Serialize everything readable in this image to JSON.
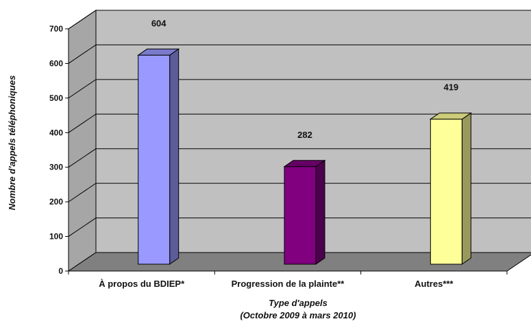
{
  "chart_data": {
    "type": "bar",
    "style": "3d-column",
    "title": "",
    "xlabel": "Type d'appels",
    "xlabel_sub": "(Octobre 2009 à mars 2010)",
    "ylabel": "Nombre d'appels téléphoniques",
    "ylim": [
      0,
      700
    ],
    "yticks": [
      0,
      100,
      200,
      300,
      400,
      500,
      600,
      700
    ],
    "grid": true,
    "legend": "none",
    "categories": [
      "À propos du BDIEP*",
      "Progression de la plainte**",
      "Autres***"
    ],
    "values": [
      604,
      282,
      419
    ],
    "data_labels": [
      "604",
      "282",
      "419"
    ],
    "colors": [
      "#9999ff",
      "#800080",
      "#ffff99"
    ],
    "wall_color": "#c0c0c0",
    "floor_color": "#808080"
  }
}
